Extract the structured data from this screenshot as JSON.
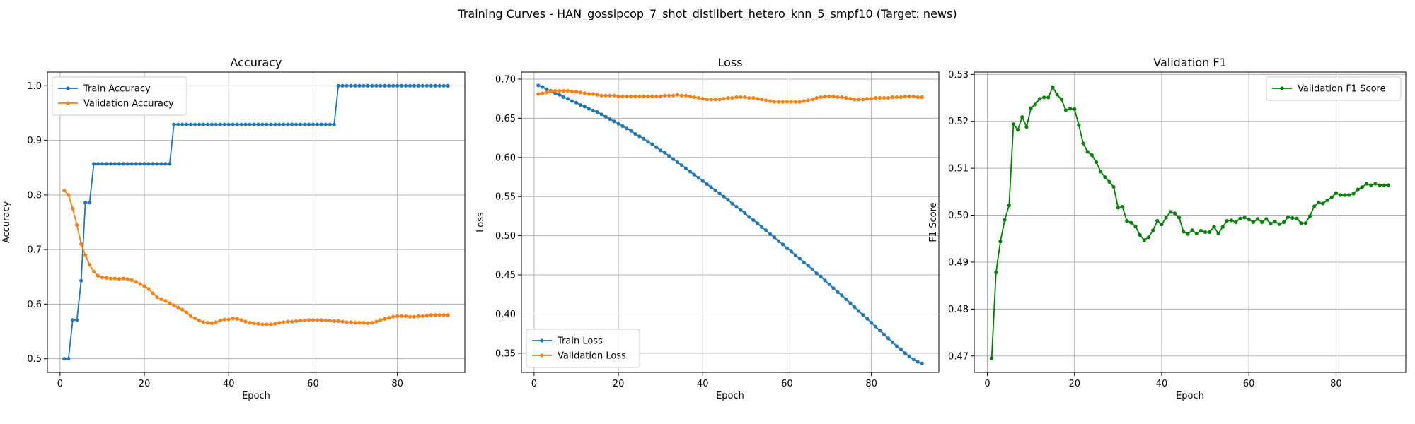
{
  "figure": {
    "suptitle": "Training Curves - HAN_gossipcop_7_shot_distilbert_hetero_knn_5_smpf10 (Target: news)"
  },
  "chart_data": [
    {
      "type": "line",
      "title": "Accuracy",
      "xlabel": "Epoch",
      "ylabel": "Accuracy",
      "xlim": [
        -3,
        96
      ],
      "ylim": [
        0.475,
        1.025
      ],
      "xticks": [
        0,
        20,
        40,
        60,
        80
      ],
      "yticks": [
        0.5,
        0.6,
        0.7,
        0.8,
        0.9,
        1.0
      ],
      "ytick_format": 1,
      "grid": true,
      "legend_position": "upper left",
      "series": [
        {
          "name": "Train Accuracy",
          "color": "#1f77b4",
          "x_start": 1,
          "values": [
            0.5,
            0.5,
            0.571,
            0.571,
            0.643,
            0.786,
            0.786,
            0.857,
            0.857,
            0.857,
            0.857,
            0.857,
            0.857,
            0.857,
            0.857,
            0.857,
            0.857,
            0.857,
            0.857,
            0.857,
            0.857,
            0.857,
            0.857,
            0.857,
            0.857,
            0.857,
            0.929,
            0.929,
            0.929,
            0.929,
            0.929,
            0.929,
            0.929,
            0.929,
            0.929,
            0.929,
            0.929,
            0.929,
            0.929,
            0.929,
            0.929,
            0.929,
            0.929,
            0.929,
            0.929,
            0.929,
            0.929,
            0.929,
            0.929,
            0.929,
            0.929,
            0.929,
            0.929,
            0.929,
            0.929,
            0.929,
            0.929,
            0.929,
            0.929,
            0.929,
            0.929,
            0.929,
            0.929,
            0.929,
            0.929,
            1.0,
            1.0,
            1.0,
            1.0,
            1.0,
            1.0,
            1.0,
            1.0,
            1.0,
            1.0,
            1.0,
            1.0,
            1.0,
            1.0,
            1.0,
            1.0,
            1.0,
            1.0,
            1.0,
            1.0,
            1.0,
            1.0,
            1.0,
            1.0,
            1.0,
            1.0,
            1.0
          ]
        },
        {
          "name": "Validation Accuracy",
          "color": "#ff7f0e",
          "x_start": 1,
          "values": [
            0.808,
            0.8,
            0.775,
            0.745,
            0.71,
            0.69,
            0.672,
            0.66,
            0.652,
            0.649,
            0.648,
            0.647,
            0.647,
            0.646,
            0.647,
            0.646,
            0.644,
            0.641,
            0.637,
            0.633,
            0.628,
            0.62,
            0.613,
            0.609,
            0.606,
            0.602,
            0.598,
            0.594,
            0.59,
            0.585,
            0.578,
            0.574,
            0.57,
            0.567,
            0.566,
            0.565,
            0.567,
            0.57,
            0.572,
            0.572,
            0.574,
            0.573,
            0.571,
            0.568,
            0.566,
            0.565,
            0.564,
            0.563,
            0.563,
            0.563,
            0.564,
            0.566,
            0.567,
            0.568,
            0.568,
            0.569,
            0.57,
            0.57,
            0.571,
            0.571,
            0.571,
            0.571,
            0.57,
            0.57,
            0.569,
            0.569,
            0.568,
            0.567,
            0.567,
            0.566,
            0.566,
            0.566,
            0.565,
            0.566,
            0.568,
            0.571,
            0.573,
            0.575,
            0.577,
            0.578,
            0.578,
            0.578,
            0.577,
            0.577,
            0.578,
            0.578,
            0.579,
            0.58,
            0.58,
            0.58,
            0.58,
            0.58
          ]
        }
      ]
    },
    {
      "type": "line",
      "title": "Loss",
      "xlabel": "Epoch",
      "ylabel": "Loss",
      "xlim": [
        -3,
        96
      ],
      "ylim": [
        0.3255,
        0.709
      ],
      "xticks": [
        0,
        20,
        40,
        60,
        80
      ],
      "yticks": [
        0.35,
        0.4,
        0.45,
        0.5,
        0.55,
        0.6,
        0.65,
        0.7
      ],
      "ytick_format": 2,
      "grid": true,
      "legend_position": "lower left",
      "series": [
        {
          "name": "Train Loss",
          "color": "#1f77b4",
          "x_start": 1,
          "values": [
            0.692,
            0.69,
            0.687,
            0.685,
            0.682,
            0.68,
            0.677,
            0.675,
            0.672,
            0.67,
            0.667,
            0.665,
            0.662,
            0.66,
            0.658,
            0.655,
            0.652,
            0.649,
            0.646,
            0.643,
            0.64,
            0.637,
            0.634,
            0.63,
            0.627,
            0.624,
            0.62,
            0.617,
            0.613,
            0.609,
            0.606,
            0.602,
            0.598,
            0.594,
            0.59,
            0.586,
            0.582,
            0.578,
            0.574,
            0.57,
            0.566,
            0.562,
            0.558,
            0.554,
            0.55,
            0.546,
            0.541,
            0.537,
            0.533,
            0.529,
            0.524,
            0.52,
            0.516,
            0.511,
            0.507,
            0.502,
            0.498,
            0.493,
            0.489,
            0.484,
            0.48,
            0.475,
            0.471,
            0.466,
            0.462,
            0.457,
            0.452,
            0.448,
            0.443,
            0.438,
            0.433,
            0.428,
            0.424,
            0.419,
            0.414,
            0.409,
            0.404,
            0.399,
            0.394,
            0.389,
            0.384,
            0.379,
            0.374,
            0.369,
            0.364,
            0.359,
            0.355,
            0.35,
            0.346,
            0.342,
            0.339,
            0.337
          ]
        },
        {
          "name": "Validation Loss",
          "color": "#ff7f0e",
          "x_start": 1,
          "values": [
            0.681,
            0.682,
            0.683,
            0.684,
            0.685,
            0.685,
            0.685,
            0.685,
            0.684,
            0.684,
            0.683,
            0.682,
            0.681,
            0.681,
            0.68,
            0.679,
            0.679,
            0.679,
            0.679,
            0.678,
            0.678,
            0.678,
            0.678,
            0.678,
            0.678,
            0.678,
            0.678,
            0.678,
            0.678,
            0.678,
            0.679,
            0.679,
            0.679,
            0.68,
            0.679,
            0.679,
            0.678,
            0.677,
            0.676,
            0.675,
            0.674,
            0.674,
            0.674,
            0.674,
            0.675,
            0.676,
            0.676,
            0.677,
            0.677,
            0.677,
            0.676,
            0.676,
            0.675,
            0.674,
            0.673,
            0.672,
            0.671,
            0.671,
            0.671,
            0.671,
            0.671,
            0.671,
            0.671,
            0.672,
            0.673,
            0.674,
            0.676,
            0.677,
            0.678,
            0.678,
            0.678,
            0.677,
            0.677,
            0.676,
            0.675,
            0.674,
            0.674,
            0.674,
            0.675,
            0.675,
            0.676,
            0.676,
            0.676,
            0.676,
            0.677,
            0.677,
            0.677,
            0.678,
            0.678,
            0.678,
            0.677,
            0.677
          ]
        }
      ]
    },
    {
      "type": "line",
      "title": "Validation F1",
      "xlabel": "Epoch",
      "ylabel": "F1 Score",
      "xlim": [
        -3,
        96
      ],
      "ylim": [
        0.4665,
        0.5305
      ],
      "xticks": [
        0,
        20,
        40,
        60,
        80
      ],
      "yticks": [
        0.47,
        0.48,
        0.49,
        0.5,
        0.51,
        0.52,
        0.53
      ],
      "ytick_format": 2,
      "grid": true,
      "legend_position": "upper right",
      "series": [
        {
          "name": "Validation F1 Score",
          "color": "#008000",
          "x_start": 1,
          "values": [
            0.4695,
            0.4878,
            0.4944,
            0.499,
            0.5021,
            0.5194,
            0.5182,
            0.5209,
            0.5188,
            0.5228,
            0.5236,
            0.5248,
            0.5251,
            0.5251,
            0.5273,
            0.5257,
            0.5247,
            0.5224,
            0.5227,
            0.5226,
            0.5192,
            0.5153,
            0.5135,
            0.5128,
            0.5113,
            0.5093,
            0.5081,
            0.5071,
            0.506,
            0.5016,
            0.5018,
            0.4988,
            0.4984,
            0.4976,
            0.4958,
            0.4947,
            0.4953,
            0.4968,
            0.4988,
            0.498,
            0.4995,
            0.5007,
            0.5004,
            0.4995,
            0.4965,
            0.496,
            0.4968,
            0.4961,
            0.4967,
            0.4964,
            0.4964,
            0.4975,
            0.4961,
            0.4975,
            0.4988,
            0.4989,
            0.4985,
            0.4993,
            0.4995,
            0.4991,
            0.4985,
            0.4992,
            0.4985,
            0.4992,
            0.4982,
            0.4986,
            0.4981,
            0.4985,
            0.4996,
            0.4994,
            0.4993,
            0.4983,
            0.4983,
            0.4998,
            0.5019,
            0.5027,
            0.5025,
            0.5032,
            0.5038,
            0.5047,
            0.5043,
            0.5043,
            0.5043,
            0.5046,
            0.5055,
            0.506,
            0.5067,
            0.5064,
            0.5067,
            0.5064,
            0.5064,
            0.5064
          ]
        }
      ]
    }
  ]
}
